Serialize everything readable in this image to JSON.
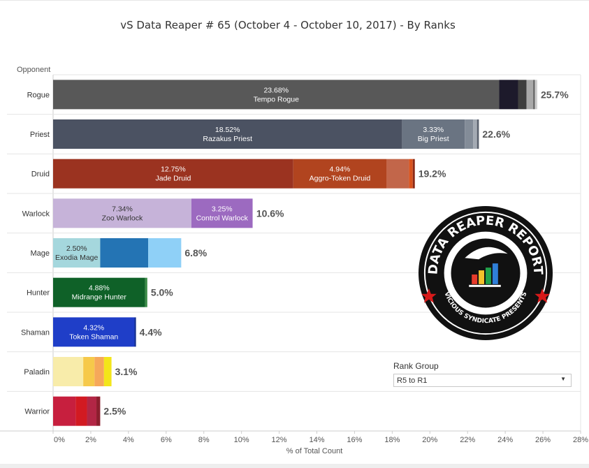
{
  "title": "vS Data Reaper #  65 (October 4 - October 10, 2017) - By Ranks",
  "colors": {
    "grid": "#e5e5e5",
    "axis": "#cccccc"
  },
  "logo": {
    "text_top": "DATA REAPER REPORT",
    "text_bottom": "VICIOUS SYNDICATE PRESENTS"
  },
  "filter": {
    "label": "Rank Group",
    "value": "R5 to R1"
  },
  "chart_data": {
    "type": "bar",
    "orientation": "horizontal",
    "stacked": true,
    "title": "vS Data Reaper #  65 (October 4 - October 10, 2017) - By Ranks",
    "ylabel": "Opponent",
    "xlabel": "% of Total Count",
    "xlim": [
      0,
      28
    ],
    "xticks": [
      "0%",
      "2%",
      "4%",
      "6%",
      "8%",
      "10%",
      "12%",
      "14%",
      "16%",
      "18%",
      "20%",
      "22%",
      "24%",
      "26%",
      "28%"
    ],
    "grid": true,
    "rows": [
      {
        "class": "Rogue",
        "total": 25.7,
        "total_label": "25.7%",
        "segments": [
          {
            "value": 23.68,
            "label": "23.68%",
            "name": "Tempo Rogue",
            "color": "#585858",
            "text_color": "#ffffff"
          },
          {
            "value": 1.0,
            "color": "#1d1a2b"
          },
          {
            "value": 0.45,
            "color": "#3e3e3e"
          },
          {
            "value": 0.35,
            "color": "#a9a9a9"
          },
          {
            "value": 0.1,
            "color": "#6b6b6b"
          },
          {
            "value": 0.12,
            "color": "#cfcfcf"
          }
        ]
      },
      {
        "class": "Priest",
        "total": 22.6,
        "total_label": "22.6%",
        "segments": [
          {
            "value": 18.52,
            "label": "18.52%",
            "name": "Razakus Priest",
            "color": "#4b5262",
            "text_color": "#ffffff"
          },
          {
            "value": 3.33,
            "label": "3.33%",
            "name": "Big Priest",
            "color": "#6a7482",
            "text_color": "#ffffff"
          },
          {
            "value": 0.45,
            "color": "#838c98"
          },
          {
            "value": 0.2,
            "color": "#a3aab3"
          },
          {
            "value": 0.1,
            "color": "#5a616d"
          }
        ]
      },
      {
        "class": "Druid",
        "total": 19.2,
        "total_label": "19.2%",
        "segments": [
          {
            "value": 12.75,
            "label": "12.75%",
            "name": "Jade Druid",
            "color": "#9b3320",
            "text_color": "#ffffff"
          },
          {
            "value": 4.94,
            "label": "4.94%",
            "name": "Aggro-Token Druid",
            "color": "#b1441f",
            "text_color": "#ffffff"
          },
          {
            "value": 1.2,
            "color": "#c2664a"
          },
          {
            "value": 0.2,
            "color": "#d9531e"
          },
          {
            "value": 0.11,
            "color": "#8c2a16"
          }
        ]
      },
      {
        "class": "Warlock",
        "total": 10.6,
        "total_label": "10.6%",
        "segments": [
          {
            "value": 7.34,
            "label": "7.34%",
            "name": "Zoo Warlock",
            "color": "#c6b3d9",
            "text_color": "#333333"
          },
          {
            "value": 3.25,
            "label": "3.25%",
            "name": "Control Warlock",
            "color": "#9c6ac0",
            "text_color": "#ffffff"
          }
        ]
      },
      {
        "class": "Mage",
        "total": 6.8,
        "total_label": "6.8%",
        "segments": [
          {
            "value": 2.5,
            "label": "2.50%",
            "name": "Exodia Mage",
            "color": "#a5d7dd",
            "text_color": "#333333"
          },
          {
            "value": 2.55,
            "color": "#2474b4"
          },
          {
            "value": 1.75,
            "color": "#8fd0f7"
          }
        ]
      },
      {
        "class": "Hunter",
        "total": 5.0,
        "total_label": "5.0%",
        "segments": [
          {
            "value": 4.88,
            "label": "4.88%",
            "name": "Midrange Hunter",
            "color": "#0f6128",
            "text_color": "#ffffff"
          },
          {
            "value": 0.12,
            "color": "#3c8c48"
          }
        ]
      },
      {
        "class": "Shaman",
        "total": 4.4,
        "total_label": "4.4%",
        "segments": [
          {
            "value": 4.32,
            "label": "4.32%",
            "name": "Token Shaman",
            "color": "#1f3ec8",
            "text_color": "#ffffff"
          },
          {
            "value": 0.08,
            "color": "#16308f"
          }
        ]
      },
      {
        "class": "Paladin",
        "total": 3.1,
        "total_label": "3.1%",
        "segments": [
          {
            "value": 1.6,
            "color": "#f8ecaa"
          },
          {
            "value": 0.6,
            "color": "#f6c94a"
          },
          {
            "value": 0.5,
            "color": "#f6a85a"
          },
          {
            "value": 0.4,
            "color": "#f3e51a"
          }
        ]
      },
      {
        "class": "Warrior",
        "total": 2.5,
        "total_label": "2.5%",
        "segments": [
          {
            "value": 1.2,
            "color": "#c71f3e"
          },
          {
            "value": 0.6,
            "color": "#d21a22"
          },
          {
            "value": 0.5,
            "color": "#b22645"
          },
          {
            "value": 0.2,
            "color": "#8c1e2e"
          }
        ]
      }
    ]
  }
}
